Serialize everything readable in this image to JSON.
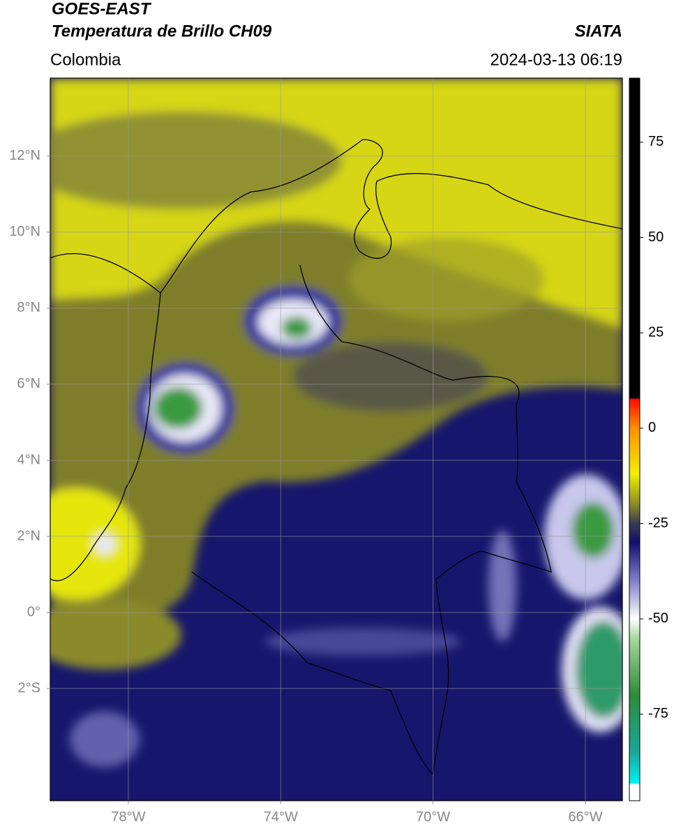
{
  "chart_data": {
    "type": "map",
    "title": "GOES-EAST",
    "subtitle": "Temperatura de Brillo CH09",
    "source": "SIATA",
    "region": "Colombia",
    "timestamp": "2024-03-13 06:19",
    "xlim": [
      -80.05,
      -65.03
    ],
    "ylim": [
      -4.95,
      14.05
    ],
    "xticks": [
      {
        "value": -78,
        "label": "78°W"
      },
      {
        "value": -74,
        "label": "74°W"
      },
      {
        "value": -70,
        "label": "70°W"
      },
      {
        "value": -66,
        "label": "66°W"
      }
    ],
    "yticks": [
      {
        "value": 12,
        "label": "12°N"
      },
      {
        "value": 10,
        "label": "10°N"
      },
      {
        "value": 8,
        "label": "8°N"
      },
      {
        "value": 6,
        "label": "6°N"
      },
      {
        "value": 4,
        "label": "4°N"
      },
      {
        "value": 2,
        "label": "2°N"
      },
      {
        "value": 0,
        "label": "0°"
      },
      {
        "value": -2,
        "label": "2°S"
      }
    ],
    "grid": true,
    "colorbar": {
      "lim": [
        -97.7,
        91.8
      ],
      "ticks": [
        75,
        50,
        25,
        0,
        -25,
        -50,
        -75
      ],
      "stops": [
        {
          "value": -97.7,
          "color": "#ffffff"
        },
        {
          "value": -93.5,
          "color": "#ffffff"
        },
        {
          "value": -93,
          "color": "#00f0f0"
        },
        {
          "value": -85,
          "color": "#1aa89a"
        },
        {
          "value": -70,
          "color": "#2e8b3a"
        },
        {
          "value": -55,
          "color": "#a8d8a0"
        },
        {
          "value": -50,
          "color": "#ffffff"
        },
        {
          "value": -40,
          "color": "#8080c8"
        },
        {
          "value": -30,
          "color": "#101070"
        },
        {
          "value": -25,
          "color": "#3a3a50"
        },
        {
          "value": -20,
          "color": "#8a8a2a"
        },
        {
          "value": -12,
          "color": "#f0f000"
        },
        {
          "value": 0,
          "color": "#ff9000"
        },
        {
          "value": 7.5,
          "color": "#ff1000"
        },
        {
          "value": 8,
          "color": "#000000"
        },
        {
          "value": 91.8,
          "color": "#000000"
        }
      ]
    }
  }
}
